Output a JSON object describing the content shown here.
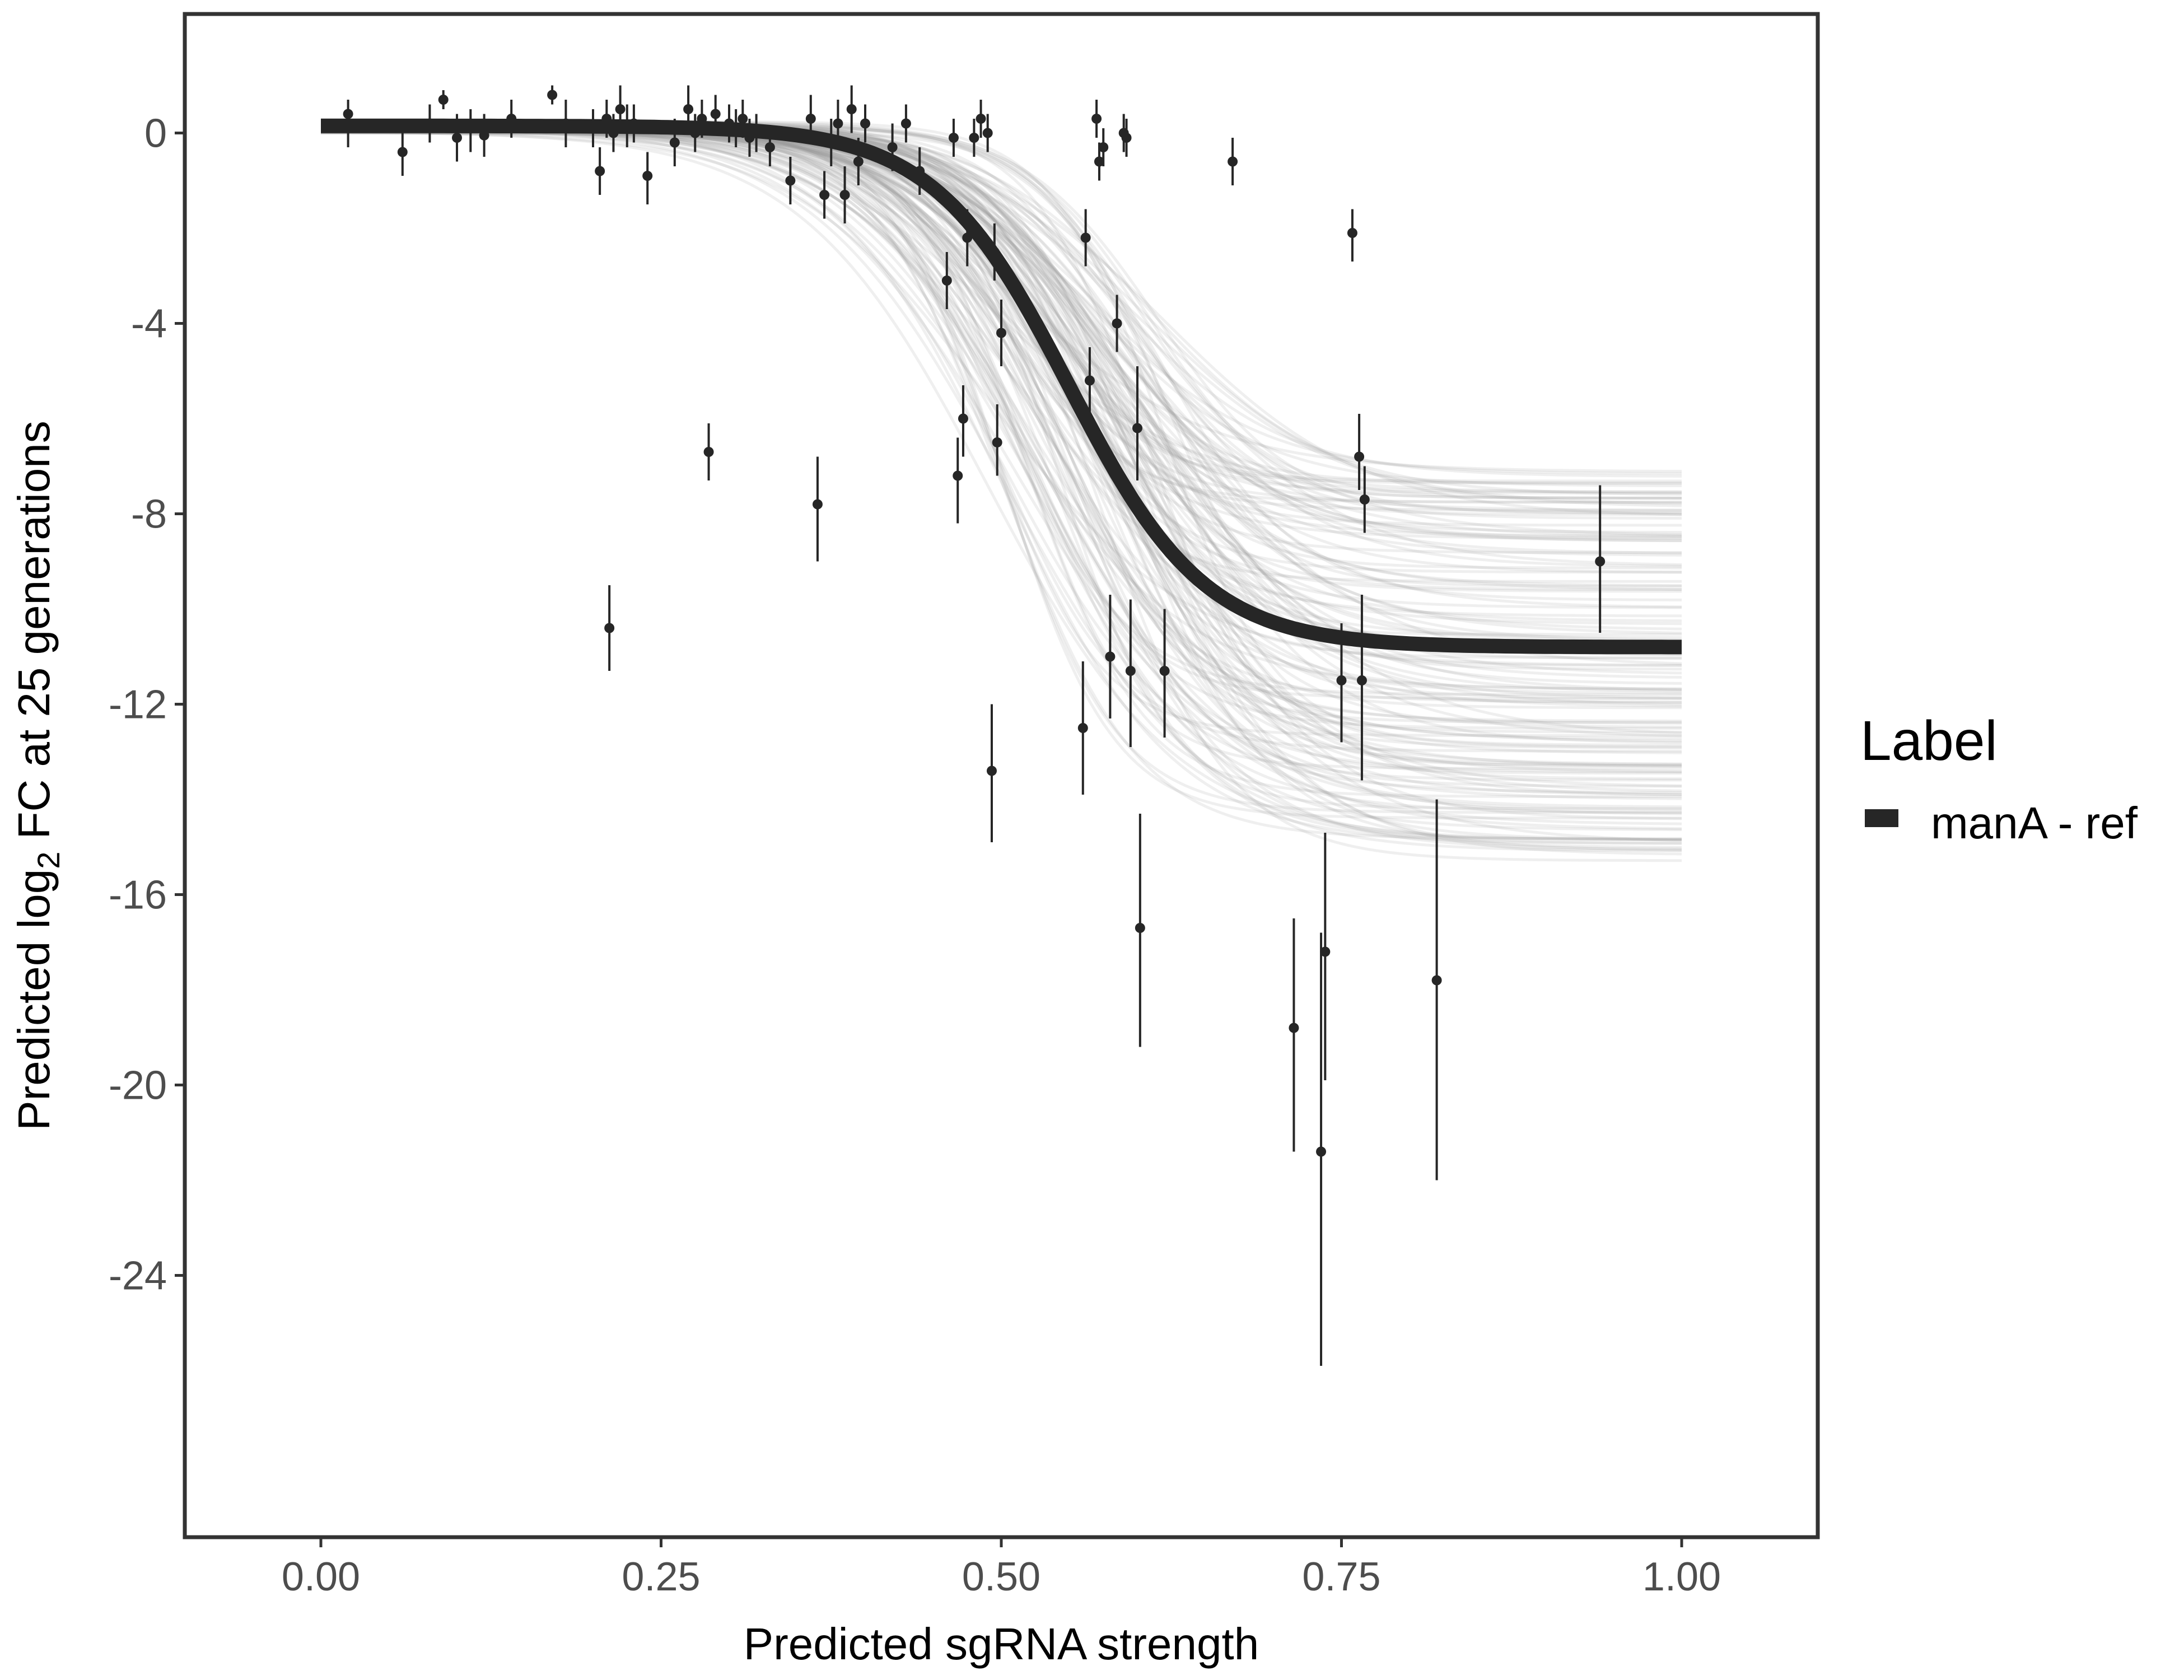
{
  "chart_data": {
    "type": "scatter",
    "xlabel": "Predicted sgRNA strength",
    "ylabel_parts": {
      "prefix": "Predicted  log",
      "subscript": "2",
      "suffix": " FC at 25 generations"
    },
    "xlim": [
      -0.1,
      1.1
    ],
    "ylim": [
      -29.5,
      2.5
    ],
    "x_ticks": [
      0,
      0.25,
      0.5,
      0.75,
      1
    ],
    "x_tick_labels": [
      "0.00",
      "0.25",
      "0.50",
      "0.75",
      "1.00"
    ],
    "y_ticks": [
      0,
      -4,
      -8,
      -12,
      -16,
      -20,
      -24
    ],
    "y_tick_labels": [
      "0",
      "-4",
      "-8",
      "-12",
      "-16",
      "-20",
      "-24"
    ],
    "grid": false,
    "legend": {
      "title": "Label",
      "placement": "right",
      "entries": [
        {
          "label": "manA - ref",
          "color": "#262626"
        }
      ]
    },
    "colors": {
      "fit_line": "#262626",
      "posterior_band": "#9e9e9e",
      "points": "#262626",
      "panel_border": "#333333"
    },
    "fit_curve": {
      "description_model": "logistic",
      "upper": 0.15,
      "lower": -10.8,
      "midpoint": 0.55,
      "scale": 0.05
    },
    "posterior_band": {
      "draws": 150,
      "upper_range": [
        0,
        0.25
      ],
      "lower_range": [
        -15.3,
        -6.9
      ],
      "midpoint_range": [
        0.49,
        0.62
      ],
      "scale_range": [
        0.04,
        0.075
      ]
    },
    "points": [
      {
        "x": 0.02,
        "y": 0.4,
        "lo": -0.3,
        "hi": 0.7
      },
      {
        "x": 0.06,
        "y": -0.4,
        "lo": -0.9,
        "hi": 0.1
      },
      {
        "x": 0.08,
        "y": 0.2,
        "lo": -0.2,
        "hi": 0.6
      },
      {
        "x": 0.09,
        "y": 0.7,
        "lo": 0.5,
        "hi": 0.9
      },
      {
        "x": 0.1,
        "y": -0.1,
        "lo": -0.6,
        "hi": 0.4
      },
      {
        "x": 0.11,
        "y": 0.1,
        "lo": -0.4,
        "hi": 0.5
      },
      {
        "x": 0.12,
        "y": -0.05,
        "lo": -0.5,
        "hi": 0.4
      },
      {
        "x": 0.14,
        "y": 0.3,
        "lo": -0.1,
        "hi": 0.7
      },
      {
        "x": 0.17,
        "y": 0.8,
        "lo": 0.6,
        "hi": 1.0
      },
      {
        "x": 0.18,
        "y": 0.2,
        "lo": -0.3,
        "hi": 0.7
      },
      {
        "x": 0.2,
        "y": 0.1,
        "lo": -0.3,
        "hi": 0.5
      },
      {
        "x": 0.205,
        "y": -0.8,
        "lo": -1.3,
        "hi": -0.3
      },
      {
        "x": 0.21,
        "y": 0.3,
        "lo": -0.1,
        "hi": 0.7
      },
      {
        "x": 0.212,
        "y": -10.4,
        "lo": -11.3,
        "hi": -9.5
      },
      {
        "x": 0.215,
        "y": 0.0,
        "lo": -0.4,
        "hi": 0.4
      },
      {
        "x": 0.22,
        "y": 0.5,
        "lo": 0.0,
        "hi": 1.0
      },
      {
        "x": 0.225,
        "y": 0.15,
        "lo": -0.3,
        "hi": 0.6
      },
      {
        "x": 0.23,
        "y": 0.2,
        "lo": -0.2,
        "hi": 0.6
      },
      {
        "x": 0.24,
        "y": -0.9,
        "lo": -1.5,
        "hi": -0.4
      },
      {
        "x": 0.26,
        "y": -0.2,
        "lo": -0.7,
        "hi": 0.3
      },
      {
        "x": 0.27,
        "y": 0.5,
        "lo": 0.0,
        "hi": 1.0
      },
      {
        "x": 0.275,
        "y": 0.0,
        "lo": -0.4,
        "hi": 0.4
      },
      {
        "x": 0.28,
        "y": 0.3,
        "lo": -0.1,
        "hi": 0.7
      },
      {
        "x": 0.285,
        "y": -6.7,
        "lo": -7.3,
        "hi": -6.1
      },
      {
        "x": 0.29,
        "y": 0.4,
        "lo": 0.0,
        "hi": 0.8
      },
      {
        "x": 0.3,
        "y": 0.2,
        "lo": -0.2,
        "hi": 0.6
      },
      {
        "x": 0.305,
        "y": 0.1,
        "lo": -0.3,
        "hi": 0.5
      },
      {
        "x": 0.31,
        "y": 0.3,
        "lo": -0.1,
        "hi": 0.7
      },
      {
        "x": 0.315,
        "y": -0.1,
        "lo": -0.5,
        "hi": 0.3
      },
      {
        "x": 0.32,
        "y": 0.0,
        "lo": -0.4,
        "hi": 0.4
      },
      {
        "x": 0.33,
        "y": -0.3,
        "lo": -0.7,
        "hi": 0.1
      },
      {
        "x": 0.345,
        "y": -1.0,
        "lo": -1.5,
        "hi": -0.5
      },
      {
        "x": 0.36,
        "y": 0.3,
        "lo": -0.2,
        "hi": 0.8
      },
      {
        "x": 0.365,
        "y": -7.8,
        "lo": -9.0,
        "hi": -6.8
      },
      {
        "x": 0.37,
        "y": -1.3,
        "lo": -1.8,
        "hi": -0.8
      },
      {
        "x": 0.375,
        "y": -0.2,
        "lo": -0.7,
        "hi": 0.3
      },
      {
        "x": 0.38,
        "y": 0.2,
        "lo": -0.3,
        "hi": 0.7
      },
      {
        "x": 0.385,
        "y": -1.3,
        "lo": -1.9,
        "hi": -0.7
      },
      {
        "x": 0.39,
        "y": 0.5,
        "lo": 0.0,
        "hi": 1.0
      },
      {
        "x": 0.395,
        "y": -0.6,
        "lo": -1.1,
        "hi": -0.1
      },
      {
        "x": 0.4,
        "y": 0.2,
        "lo": -0.2,
        "hi": 0.6
      },
      {
        "x": 0.42,
        "y": -0.3,
        "lo": -0.8,
        "hi": 0.2
      },
      {
        "x": 0.43,
        "y": 0.2,
        "lo": -0.2,
        "hi": 0.6
      },
      {
        "x": 0.44,
        "y": -0.8,
        "lo": -1.3,
        "hi": -0.3
      },
      {
        "x": 0.46,
        "y": -3.1,
        "lo": -3.7,
        "hi": -2.5
      },
      {
        "x": 0.465,
        "y": -0.1,
        "lo": -0.5,
        "hi": 0.3
      },
      {
        "x": 0.468,
        "y": -7.2,
        "lo": -8.2,
        "hi": -6.4
      },
      {
        "x": 0.472,
        "y": -6.0,
        "lo": -6.8,
        "hi": -5.3
      },
      {
        "x": 0.475,
        "y": -2.2,
        "lo": -2.8,
        "hi": -1.6
      },
      {
        "x": 0.48,
        "y": -0.1,
        "lo": -0.5,
        "hi": 0.3
      },
      {
        "x": 0.485,
        "y": 0.3,
        "lo": -0.1,
        "hi": 0.7
      },
      {
        "x": 0.49,
        "y": 0.0,
        "lo": -0.4,
        "hi": 0.4
      },
      {
        "x": 0.493,
        "y": -13.4,
        "lo": -14.9,
        "hi": -12.0
      },
      {
        "x": 0.495,
        "y": -2.5,
        "lo": -3.1,
        "hi": -1.9
      },
      {
        "x": 0.497,
        "y": -6.5,
        "lo": -7.2,
        "hi": -5.7
      },
      {
        "x": 0.5,
        "y": -4.2,
        "lo": -4.9,
        "hi": -3.5
      },
      {
        "x": 0.56,
        "y": -12.5,
        "lo": -13.9,
        "hi": -11.1
      },
      {
        "x": 0.562,
        "y": -2.2,
        "lo": -2.8,
        "hi": -1.6
      },
      {
        "x": 0.565,
        "y": -5.2,
        "lo": -5.9,
        "hi": -4.5
      },
      {
        "x": 0.57,
        "y": 0.3,
        "lo": -0.1,
        "hi": 0.7
      },
      {
        "x": 0.572,
        "y": -0.6,
        "lo": -1.0,
        "hi": -0.2
      },
      {
        "x": 0.575,
        "y": -0.3,
        "lo": -0.7,
        "hi": 0.1
      },
      {
        "x": 0.58,
        "y": -11.0,
        "lo": -12.3,
        "hi": -9.7
      },
      {
        "x": 0.585,
        "y": -4.0,
        "lo": -4.6,
        "hi": -3.4
      },
      {
        "x": 0.59,
        "y": 0.0,
        "lo": -0.4,
        "hi": 0.4
      },
      {
        "x": 0.592,
        "y": -0.1,
        "lo": -0.5,
        "hi": 0.3
      },
      {
        "x": 0.595,
        "y": -11.3,
        "lo": -12.9,
        "hi": -9.8
      },
      {
        "x": 0.6,
        "y": -6.2,
        "lo": -7.3,
        "hi": -4.9
      },
      {
        "x": 0.602,
        "y": -16.7,
        "lo": -19.2,
        "hi": -14.3
      },
      {
        "x": 0.62,
        "y": -11.3,
        "lo": -12.7,
        "hi": -10.0
      },
      {
        "x": 0.67,
        "y": -0.6,
        "lo": -1.1,
        "hi": -0.1
      },
      {
        "x": 0.715,
        "y": -18.8,
        "lo": -21.4,
        "hi": -16.5
      },
      {
        "x": 0.735,
        "y": -21.4,
        "lo": -25.9,
        "hi": -16.8
      },
      {
        "x": 0.738,
        "y": -17.2,
        "lo": -19.9,
        "hi": -14.7
      },
      {
        "x": 0.75,
        "y": -11.5,
        "lo": -12.8,
        "hi": -10.3
      },
      {
        "x": 0.758,
        "y": -2.1,
        "lo": -2.7,
        "hi": -1.6
      },
      {
        "x": 0.763,
        "y": -6.8,
        "lo": -7.5,
        "hi": -5.9
      },
      {
        "x": 0.765,
        "y": -11.5,
        "lo": -13.6,
        "hi": -9.7
      },
      {
        "x": 0.767,
        "y": -7.7,
        "lo": -8.4,
        "hi": -7.0
      },
      {
        "x": 0.82,
        "y": -17.8,
        "lo": -22.0,
        "hi": -14.0
      },
      {
        "x": 0.94,
        "y": -9.0,
        "lo": -10.5,
        "hi": -7.4
      }
    ]
  }
}
